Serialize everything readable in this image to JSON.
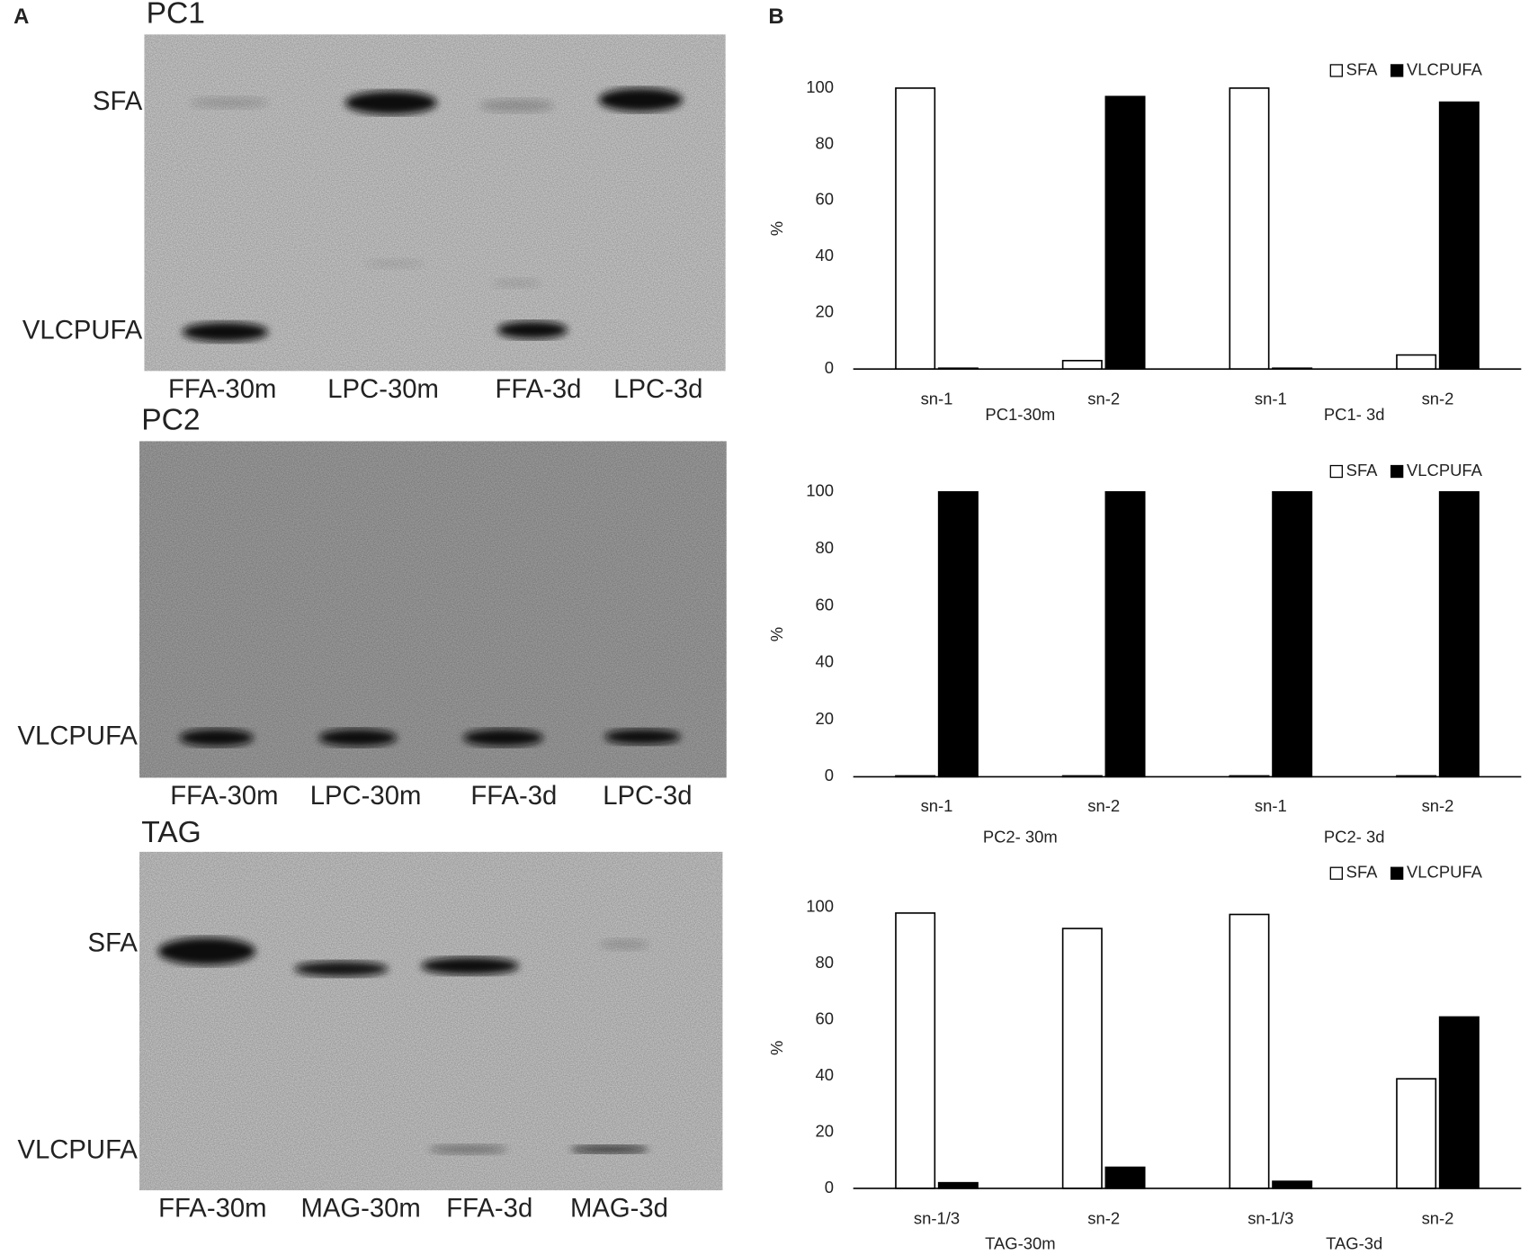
{
  "panel_labels": [
    "A",
    "B"
  ],
  "gels": [
    {
      "title": "PC1",
      "row_labels": [
        "SFA",
        "VLCPUFA"
      ],
      "lanes": [
        "FFA-30m",
        "LPC-30m",
        "FFA-3d",
        "LPC-3d"
      ]
    },
    {
      "title": "PC2",
      "row_labels": [
        "VLCPUFA"
      ],
      "lanes": [
        "FFA-30m",
        "LPC-30m",
        "FFA-3d",
        "LPC-3d"
      ]
    },
    {
      "title": "TAG",
      "row_labels": [
        "SFA",
        "VLCPUFA"
      ],
      "lanes": [
        "FFA-30m",
        "MAG-30m",
        "FFA-3d",
        "MAG-3d"
      ]
    }
  ],
  "chart_data": [
    {
      "type": "bar",
      "y_label": "%",
      "categories": [
        "sn-1",
        "sn-2",
        "sn-1",
        "sn-2"
      ],
      "group_labels": [
        "PC1-30m",
        "PC1- 3d"
      ],
      "series": [
        {
          "name": "SFA",
          "color": "#ffffff",
          "values": [
            100,
            3,
            100,
            5
          ]
        },
        {
          "name": "VLCPUFA",
          "color": "#000000",
          "values": [
            0.3,
            97,
            0.3,
            95
          ]
        }
      ],
      "ylim": [
        0,
        100
      ],
      "yticks": [
        0,
        20,
        40,
        60,
        80,
        100
      ],
      "legend": "top-right"
    },
    {
      "type": "bar",
      "y_label": "%",
      "categories": [
        "sn-1",
        "sn-2",
        "sn-1",
        "sn-2"
      ],
      "group_labels": [
        "PC2- 30m",
        "PC2- 3d"
      ],
      "series": [
        {
          "name": "SFA",
          "color": "#ffffff",
          "values": [
            0.3,
            0.3,
            0.3,
            0.3
          ]
        },
        {
          "name": "VLCPUFA",
          "color": "#000000",
          "values": [
            100,
            100,
            100,
            100
          ]
        }
      ],
      "ylim": [
        0,
        100
      ],
      "yticks": [
        0,
        20,
        40,
        60,
        80,
        100
      ],
      "legend": "top-right"
    },
    {
      "type": "bar",
      "y_label": "%",
      "categories": [
        "sn-1/3",
        "sn-2",
        "sn-1/3",
        "sn-2"
      ],
      "group_labels": [
        "TAG-30m",
        "TAG-3d"
      ],
      "series": [
        {
          "name": "SFA",
          "color": "#ffffff",
          "values": [
            98,
            92.5,
            97.5,
            39
          ]
        },
        {
          "name": "VLCPUFA",
          "color": "#000000",
          "values": [
            2,
            7.5,
            2.5,
            61
          ]
        }
      ],
      "ylim": [
        0,
        100
      ],
      "yticks": [
        0,
        20,
        40,
        60,
        80,
        100
      ],
      "legend": "top-right"
    }
  ]
}
